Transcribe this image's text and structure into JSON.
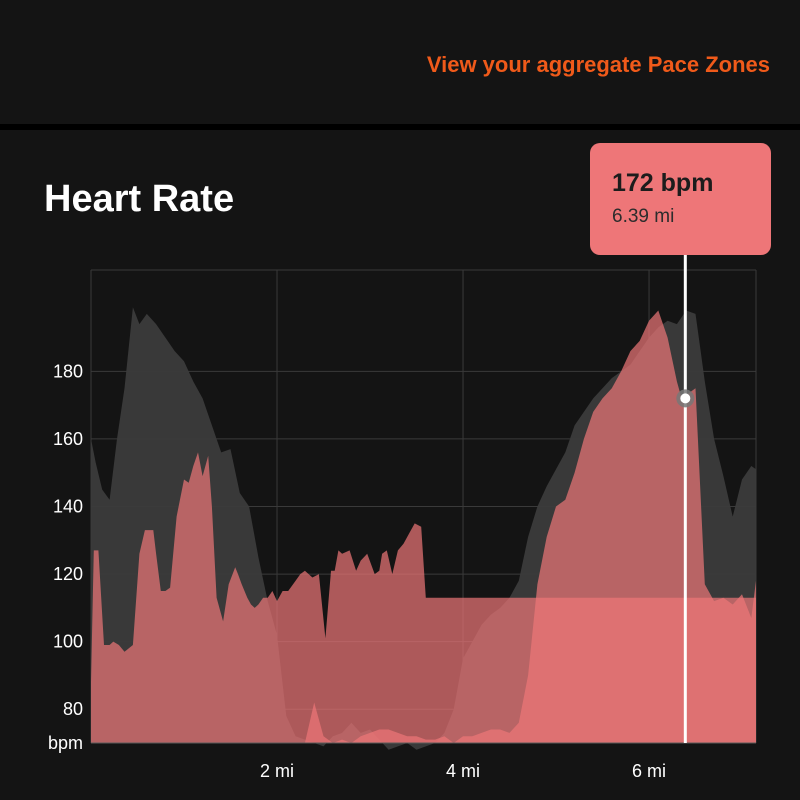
{
  "header": {
    "pace_zones_link": "View your aggregate Pace Zones"
  },
  "section": {
    "title": "Heart Rate"
  },
  "tooltip": {
    "value": "172 bpm",
    "distance": "6.39 mi"
  },
  "colors": {
    "accent": "#f05a1a",
    "heart_rate": "#ee7678",
    "elevation": "#3a3a3a",
    "background": "#141414"
  },
  "chart_data": {
    "type": "area",
    "title": "Heart Rate",
    "ylabel": "bpm",
    "xunit": "mi",
    "xlim": [
      0,
      7.15
    ],
    "ylim": [
      70,
      210
    ],
    "y_ticks": [
      {
        "value": 70,
        "label": "bpm"
      },
      {
        "value": 80,
        "label": "80"
      },
      {
        "value": 100,
        "label": "100"
      },
      {
        "value": 120,
        "label": "120"
      },
      {
        "value": 140,
        "label": "140"
      },
      {
        "value": 160,
        "label": "160"
      },
      {
        "value": 180,
        "label": "180"
      }
    ],
    "x_ticks": [
      {
        "value": 2,
        "label": "2 mi"
      },
      {
        "value": 4,
        "label": "4 mi"
      },
      {
        "value": 6,
        "label": "6 mi"
      }
    ],
    "grid": true,
    "highlight": {
      "x": 6.39,
      "y": 172
    },
    "series": [
      {
        "x": [
          0,
          0.03,
          0.08,
          0.14,
          0.2,
          0.24,
          0.3,
          0.36,
          0.45,
          0.52,
          0.58,
          0.62,
          0.67,
          0.7,
          0.75,
          0.8,
          0.85,
          0.92,
          1.0,
          1.05,
          1.1,
          1.15,
          1.2,
          1.26,
          1.3,
          1.35,
          1.42,
          1.48,
          1.55,
          1.58,
          1.62,
          1.68,
          1.72,
          1.76,
          1.8,
          1.85,
          1.9,
          1.95,
          2.0,
          2.06,
          2.12,
          2.2,
          2.25,
          2.3,
          2.38,
          2.45,
          2.52,
          2.58,
          2.62,
          2.66,
          2.7,
          2.78,
          2.85,
          2.9,
          2.97,
          3.05,
          3.1,
          3.13,
          3.18,
          3.24,
          3.3,
          3.36,
          3.42,
          3.48,
          3.55,
          3.6,
          3.65,
          3.72,
          3.78,
          3.82,
          3.88,
          3.93,
          4.0,
          4.05,
          4.1,
          4.15,
          4.2,
          4.25,
          4.3,
          4.5,
          4.8,
          5.0,
          5.3,
          5.6,
          5.8,
          6.05,
          6.1,
          6.15,
          6.2,
          6.3,
          6.33,
          6.38,
          6.43,
          6.48,
          6.52,
          6.55,
          6.6,
          6.68,
          6.75,
          6.8,
          6.85,
          6.9,
          6.97,
          7.05,
          7.1,
          7.15
        ],
        "y": [
          88,
          127,
          127,
          99,
          99,
          100,
          99,
          97,
          99,
          126,
          133,
          133,
          133,
          126,
          115,
          115,
          116,
          137,
          148,
          147,
          152,
          156,
          149,
          155,
          140,
          113,
          106,
          117,
          122,
          120,
          117,
          113,
          111,
          110,
          111,
          113,
          113,
          115,
          112,
          115,
          115,
          118,
          120,
          121,
          119,
          120,
          101,
          121,
          121,
          127,
          126,
          127,
          121,
          124,
          126,
          120,
          121,
          126,
          127,
          120,
          127,
          129,
          132,
          135,
          134,
          113,
          113,
          113,
          113,
          113,
          113,
          113,
          113,
          113,
          113,
          113,
          113,
          113,
          113,
          113,
          113,
          113,
          113,
          113,
          113,
          113,
          113,
          113,
          113,
          113,
          113,
          113,
          113,
          113,
          113,
          113,
          113,
          113,
          113,
          113,
          113,
          113,
          113,
          113,
          113,
          113
        ]
      },
      {
        "x": [
          0,
          0.1,
          0.2,
          0.3,
          0.4,
          0.5,
          0.6,
          0.7,
          0.8,
          0.9,
          1.0,
          1.1,
          1.2,
          1.3,
          1.4,
          1.5,
          1.6,
          1.7,
          1.8,
          1.9,
          2.0,
          2.1,
          2.2,
          2.3,
          2.4,
          2.5,
          2.6,
          2.7,
          2.8,
          2.9,
          3.0,
          3.1,
          3.2,
          3.3,
          3.4,
          3.5,
          3.6,
          3.7,
          3.8,
          3.9,
          4.0,
          4.1,
          4.2,
          4.3,
          4.4,
          4.5,
          4.6,
          4.7,
          4.8,
          4.9,
          5.0,
          5.1,
          5.2,
          5.3,
          5.4,
          5.5,
          5.6,
          5.7,
          5.8,
          5.9,
          6.0,
          6.1,
          6.2,
          6.3,
          6.35,
          6.4,
          6.5,
          6.6,
          6.7,
          6.8,
          6.9,
          7.0,
          7.1,
          7.15
        ],
        "y": [
          70,
          70,
          70,
          70,
          70,
          70,
          70,
          70,
          70,
          70,
          70,
          70,
          70,
          70,
          70,
          70,
          70,
          70,
          70,
          70,
          70,
          70,
          70,
          70,
          82,
          72,
          70,
          71,
          70,
          72,
          73,
          74,
          74,
          73,
          72,
          72,
          71,
          71,
          72,
          70,
          72,
          72,
          73,
          74,
          74,
          73,
          76,
          90,
          117,
          131,
          140,
          142,
          150,
          160,
          168,
          172,
          175,
          180,
          186,
          189,
          195,
          198,
          190,
          177,
          172,
          173,
          175,
          117,
          112,
          113,
          111,
          114,
          107,
          118
        ]
      }
    ],
    "elevation_profile": {
      "x": [
        0,
        0.05,
        0.12,
        0.2,
        0.28,
        0.36,
        0.45,
        0.52,
        0.6,
        0.7,
        0.8,
        0.9,
        1.0,
        1.1,
        1.2,
        1.3,
        1.4,
        1.5,
        1.6,
        1.7,
        1.8,
        1.9,
        2.0,
        2.1,
        2.2,
        2.3,
        2.4,
        2.5,
        2.6,
        2.7,
        2.8,
        2.9,
        3.0,
        3.1,
        3.2,
        3.3,
        3.4,
        3.5,
        3.6,
        3.7,
        3.8,
        3.9,
        4.0,
        4.1,
        4.2,
        4.3,
        4.4,
        4.5,
        4.6,
        4.7,
        4.8,
        4.9,
        5.0,
        5.1,
        5.2,
        5.3,
        5.4,
        5.5,
        5.6,
        5.7,
        5.8,
        5.9,
        6.0,
        6.1,
        6.2,
        6.3,
        6.4,
        6.5,
        6.55,
        6.6,
        6.7,
        6.8,
        6.9,
        7.0,
        7.1,
        7.15
      ],
      "y": [
        160,
        153,
        145,
        142,
        160,
        175,
        199,
        194,
        197,
        194,
        190,
        186,
        183,
        177,
        172,
        164,
        156,
        157,
        144,
        140,
        125,
        112,
        102,
        78,
        72,
        71,
        70,
        69,
        72,
        73,
        76,
        73,
        74,
        71,
        68,
        69,
        70,
        68,
        69,
        70,
        73,
        80,
        95,
        100,
        105,
        108,
        110,
        113,
        118,
        131,
        140,
        146,
        151,
        156,
        164,
        168,
        172,
        175,
        178,
        180,
        182,
        186,
        190,
        193,
        195,
        194,
        198,
        197,
        187,
        177,
        160,
        149,
        137,
        148,
        152,
        151
      ]
    }
  }
}
